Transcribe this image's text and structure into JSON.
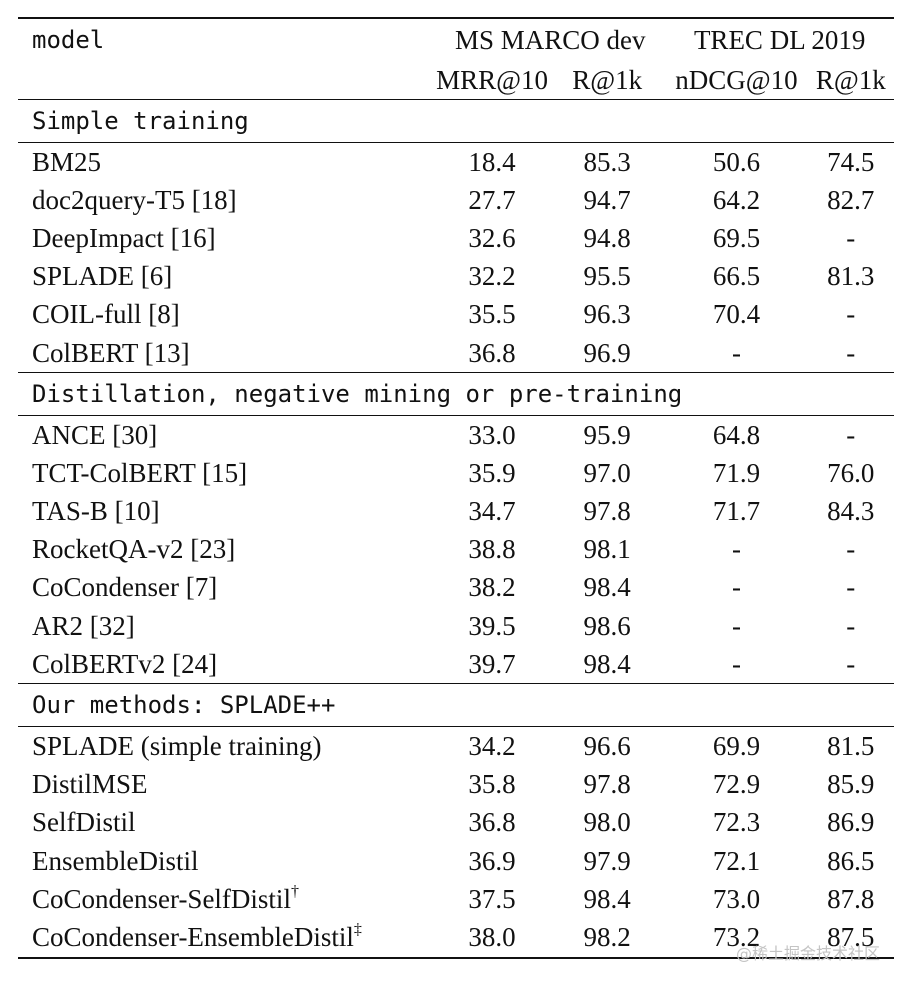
{
  "header": {
    "model_label": "model",
    "group1": "MS MARCO dev",
    "group2": "TREC DL 2019",
    "cols": [
      "MRR@10",
      "R@1k",
      "nDCG@10",
      "R@1k"
    ]
  },
  "sections": [
    {
      "title": "Simple training",
      "rows": [
        {
          "model": "BM25",
          "sup": "",
          "vals": [
            "18.4",
            "85.3",
            "50.6",
            "74.5"
          ]
        },
        {
          "model": "doc2query-T5 [18]",
          "sup": "",
          "vals": [
            "27.7",
            "94.7",
            "64.2",
            "82.7"
          ]
        },
        {
          "model": "DeepImpact [16]",
          "sup": "",
          "vals": [
            "32.6",
            "94.8",
            "69.5",
            "-"
          ]
        },
        {
          "model": "SPLADE [6]",
          "sup": "",
          "vals": [
            "32.2",
            "95.5",
            "66.5",
            "81.3"
          ]
        },
        {
          "model": "COIL-full [8]",
          "sup": "",
          "vals": [
            "35.5",
            "96.3",
            "70.4",
            "-"
          ]
        },
        {
          "model": "ColBERT [13]",
          "sup": "",
          "vals": [
            "36.8",
            "96.9",
            "-",
            "-"
          ]
        }
      ]
    },
    {
      "title": "Distillation, negative mining or pre-training",
      "rows": [
        {
          "model": "ANCE [30]",
          "sup": "",
          "vals": [
            "33.0",
            "95.9",
            "64.8",
            "-"
          ]
        },
        {
          "model": "TCT-ColBERT [15]",
          "sup": "",
          "vals": [
            "35.9",
            "97.0",
            "71.9",
            "76.0"
          ]
        },
        {
          "model": "TAS-B [10]",
          "sup": "",
          "vals": [
            "34.7",
            "97.8",
            "71.7",
            "84.3"
          ]
        },
        {
          "model": "RocketQA-v2 [23]",
          "sup": "",
          "vals": [
            "38.8",
            "98.1",
            "-",
            "-"
          ]
        },
        {
          "model": "CoCondenser [7]",
          "sup": "",
          "vals": [
            "38.2",
            "98.4",
            "-",
            "-"
          ]
        },
        {
          "model": "AR2 [32]",
          "sup": "",
          "vals": [
            "39.5",
            "98.6",
            "-",
            "-"
          ]
        },
        {
          "model": "ColBERTv2 [24]",
          "sup": "",
          "vals": [
            "39.7",
            "98.4",
            "-",
            "-"
          ]
        }
      ]
    },
    {
      "title": "Our methods: SPLADE++",
      "rows": [
        {
          "model": "SPLADE (simple training)",
          "sup": "",
          "vals": [
            "34.2",
            "96.6",
            "69.9",
            "81.5"
          ]
        },
        {
          "model": "DistilMSE",
          "sup": "",
          "vals": [
            "35.8",
            "97.8",
            "72.9",
            "85.9"
          ]
        },
        {
          "model": "SelfDistil",
          "sup": "",
          "vals": [
            "36.8",
            "98.0",
            "72.3",
            "86.9"
          ]
        },
        {
          "model": "EnsembleDistil",
          "sup": "",
          "vals": [
            "36.9",
            "97.9",
            "72.1",
            "86.5"
          ]
        },
        {
          "model": "CoCondenser-SelfDistil",
          "sup": "†",
          "vals": [
            "37.5",
            "98.4",
            "73.0",
            "87.8"
          ]
        },
        {
          "model": "CoCondenser-EnsembleDistil",
          "sup": "‡",
          "vals": [
            "38.0",
            "98.2",
            "73.2",
            "87.5"
          ]
        }
      ]
    }
  ],
  "watermark": "@稀土掘金技术社区"
}
